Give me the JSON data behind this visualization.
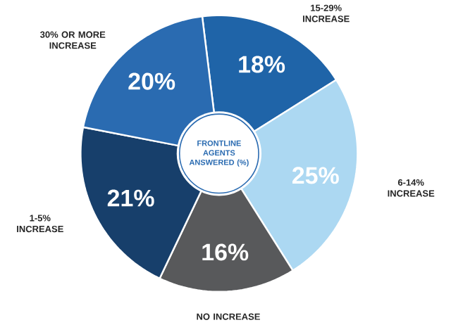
{
  "chart_data": {
    "type": "donut",
    "title": "FRONTLINE AGENTS ANSWERED (%)",
    "categories": [
      "15-29% INCREASE",
      "6-14% INCREASE",
      "NO INCREASE",
      "1-5% INCREASE",
      "30% OR MORE INCREASE"
    ],
    "values": [
      18,
      25,
      16,
      21,
      20
    ],
    "colors": [
      "#1f64a8",
      "#acd8f2",
      "#58595b",
      "#173f6b",
      "#2a6bb1"
    ],
    "value_labels": [
      "18%",
      "25%",
      "16%",
      "21%",
      "20%"
    ]
  }
}
